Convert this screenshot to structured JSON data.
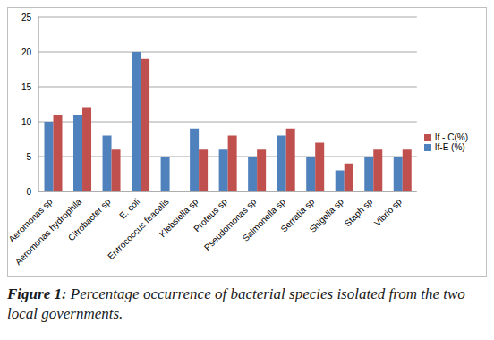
{
  "chart_data": {
    "type": "bar",
    "caption": "Figure 1: Percentage occurrence of bacterial species isolated from the two local governments.",
    "categories": [
      "Aeromonas sp",
      "Aeromonas hydrophila",
      "Citrobacter sp",
      "E. coli",
      "Entrococcus feacalis",
      "Klebsiella sp",
      "Proteus sp",
      "Pseudomonas sp",
      "Salmonella sp",
      "Serratia sp",
      "Shigella sp",
      "Staph sp",
      "Vibrio sp"
    ],
    "series": [
      {
        "name": "If-E (%)",
        "color": "#4f81bd",
        "values": [
          10,
          11,
          8,
          20,
          5,
          9,
          6,
          5,
          8,
          5,
          3,
          5,
          5
        ]
      },
      {
        "name": "If - C(%)",
        "color": "#c0504d",
        "values": [
          11,
          12,
          6,
          19,
          null,
          6,
          8,
          6,
          9,
          7,
          4,
          6,
          6
        ]
      }
    ],
    "ylim": [
      0,
      25
    ],
    "yticks": [
      0,
      5,
      10,
      15,
      20,
      25
    ],
    "grid": true,
    "legend": "right"
  }
}
